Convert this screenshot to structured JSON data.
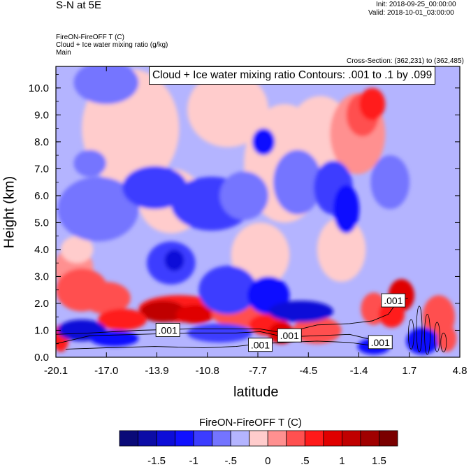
{
  "header": {
    "top_left": "S-N at 5E",
    "init": "Init: 2018-09-25_00:00:00",
    "valid": "Valid: 2018-10-01_03:00:00",
    "field_line1": "FireON-FireOFF T   (C)",
    "field_line2": "Cloud + Ice water mixing ratio   (g/kg)",
    "field_line3": "Main",
    "cross_section": "Cross-Section: (362,231) to (362,485)"
  },
  "colors": {
    "scale": [
      "#0a0a78",
      "#0c0ca6",
      "#0d0dd8",
      "#1010ff",
      "#3c3cff",
      "#7474ff",
      "#b4b4ff",
      "#ffcccc",
      "#ff9090",
      "#ff5050",
      "#ff1a1a",
      "#e00000",
      "#c00000",
      "#a00000",
      "#7a0000"
    ]
  },
  "chart_data": {
    "type": "heatmap",
    "title": "Cloud + Ice water mixing ratio Contours: .001 to .1 by .099",
    "xlabel": "latitude",
    "ylabel": "Height (km)",
    "xlim": [
      -20.1,
      4.8
    ],
    "ylim": [
      0.0,
      10.8
    ],
    "x_ticks": [
      "-20.1",
      "-17.0",
      "-13.9",
      "-10.8",
      "-7.7",
      "-4.5",
      "-1.4",
      "1.7",
      "4.8"
    ],
    "y_ticks": [
      "0.0",
      "1.0",
      "2.0",
      "3.0",
      "4.0",
      "5.0",
      "6.0",
      "7.0",
      "8.0",
      "9.0",
      "10.0"
    ],
    "colorbar": {
      "title": "FireON-FireOFF T  (C)",
      "levels": [
        -1.75,
        -1.5,
        -1.25,
        -1.0,
        -0.75,
        -0.5,
        -0.25,
        0.0,
        0.25,
        0.5,
        0.75,
        1.0,
        1.25,
        1.5,
        1.75
      ],
      "labels": [
        "-1.5",
        "-1",
        "-.5",
        "0",
        ".5",
        "1",
        "1.5"
      ]
    },
    "contour_labels": [
      {
        "text": ".001",
        "lat": -13.2,
        "h": 1.0
      },
      {
        "text": ".001",
        "lat": -7.5,
        "h": 0.45
      },
      {
        "text": ".001",
        "lat": -5.7,
        "h": 0.8
      },
      {
        "text": ".001",
        "lat": 0.7,
        "h": 2.1
      },
      {
        "text": ".001",
        "lat": -0.1,
        "h": 0.55
      }
    ]
  }
}
